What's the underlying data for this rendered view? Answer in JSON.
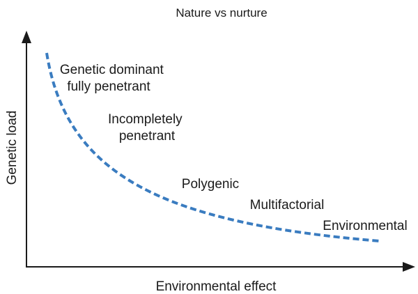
{
  "diagram": {
    "title": "Nature vs nurture",
    "y_axis_label": "Genetic load",
    "x_axis_label": "Environmental effect",
    "regions": [
      {
        "lines": [
          "Genetic dominant",
          "fully penetrant"
        ]
      },
      {
        "lines": [
          "Incompletely",
          "penetrant"
        ]
      },
      {
        "lines": [
          "Polygenic"
        ]
      },
      {
        "lines": [
          "Multifactorial"
        ]
      },
      {
        "lines": [
          "Environmental"
        ]
      }
    ],
    "curve_style": "dashed",
    "colors": {
      "curve": "#3a7cc0",
      "axes": "#1a1a1a",
      "text": "#1a1a1a"
    }
  }
}
